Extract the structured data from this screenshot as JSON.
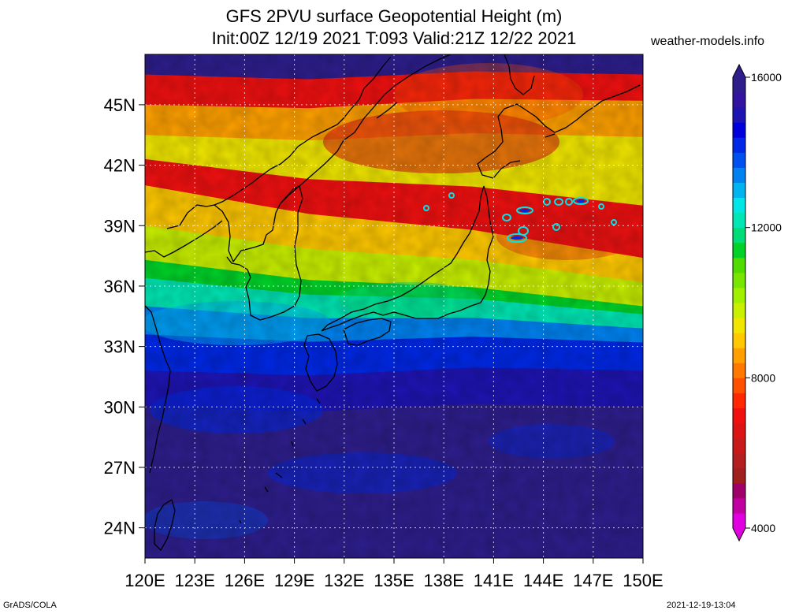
{
  "title_line1": "GFS 2PVU surface Geopotential Height (m)",
  "title_line2": "Init:00Z 12/19 2021 T:093 Valid:21Z 12/22 2021",
  "website": "weather-models.info",
  "footer_left": "GrADS/COLA",
  "footer_right": "2021-12-19-13:04",
  "map": {
    "lat_labels": [
      "45N",
      "42N",
      "39N",
      "36N",
      "33N",
      "30N",
      "27N",
      "24N"
    ],
    "lat_values": [
      45,
      42,
      39,
      36,
      33,
      30,
      27,
      24
    ],
    "lon_labels": [
      "120E",
      "123E",
      "126E",
      "129E",
      "132E",
      "135E",
      "138E",
      "141E",
      "144E",
      "147E",
      "150E"
    ],
    "lon_values": [
      120,
      123,
      126,
      129,
      132,
      135,
      138,
      141,
      144,
      147,
      150
    ],
    "lat_range": [
      22.5,
      47.5
    ],
    "lon_range": [
      120,
      150
    ],
    "field_bands_m": [
      {
        "lat_at_120E": 46.5,
        "lat_at_150E": 46.5,
        "value": 7000
      },
      {
        "lat_at_120E": 45.0,
        "lat_at_150E": 45.2,
        "value": 8600
      },
      {
        "lat_at_120E": 43.5,
        "lat_at_150E": 43.4,
        "value": 9200
      },
      {
        "lat_at_120E": 42.3,
        "lat_at_150E": 40.0,
        "value": 7000
      },
      {
        "lat_at_120E": 41.0,
        "lat_at_150E": 37.4,
        "value": 9000
      },
      {
        "lat_at_120E": 39.0,
        "lat_at_150E": 36.2,
        "value": 9800
      },
      {
        "lat_at_120E": 37.3,
        "lat_at_150E": 35.0,
        "value": 11200
      },
      {
        "lat_at_120E": 36.4,
        "lat_at_150E": 34.6,
        "value": 12000
      },
      {
        "lat_at_120E": 35.0,
        "lat_at_150E": 33.9,
        "value": 13200
      },
      {
        "lat_at_120E": 33.6,
        "lat_at_150E": 33.2,
        "value": 14000
      },
      {
        "lat_at_120E": 31.8,
        "lat_at_150E": 31.8,
        "value": 15000
      },
      {
        "lat_at_120E": 30.0,
        "lat_at_150E": 30.0,
        "value": 15600
      },
      {
        "lat_at_120E": 22.5,
        "lat_at_150E": 22.5,
        "value": 15800
      }
    ]
  },
  "colorbar": {
    "labels": [
      "16000",
      "12000",
      "8000",
      "4000"
    ],
    "label_values": [
      16000,
      12000,
      8000,
      4000
    ],
    "range": [
      4000,
      16000
    ],
    "colors": [
      "#e000e0",
      "#c000a0",
      "#a0006a",
      "#a02020",
      "#b42020",
      "#c81a1a",
      "#dc1414",
      "#f01010",
      "#ff2800",
      "#ff5000",
      "#ff7800",
      "#ffa000",
      "#ffc800",
      "#f0e600",
      "#c8f000",
      "#a0f000",
      "#78e600",
      "#50dc00",
      "#00d228",
      "#00dc78",
      "#00e6b4",
      "#00e6e6",
      "#00b4f0",
      "#0082f0",
      "#0050f0",
      "#0028e6",
      "#0000dc",
      "#1e14b4",
      "#3214a0",
      "#2d1e8c"
    ]
  }
}
